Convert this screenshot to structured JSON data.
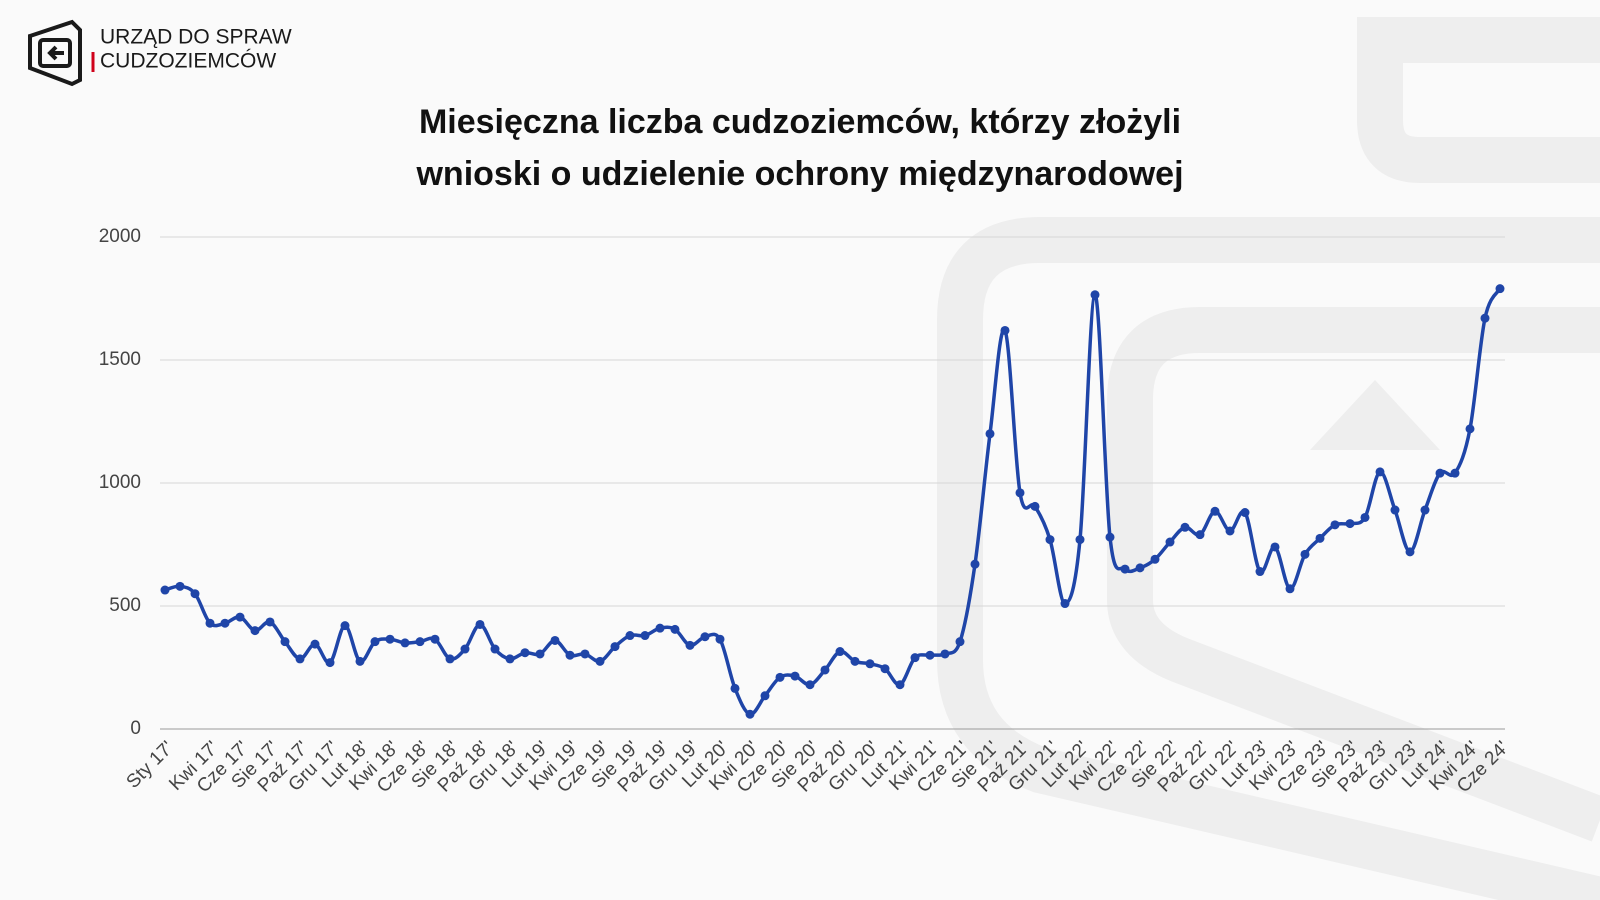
{
  "logo_text": [
    "URZĄD DO SPRAW",
    "CUDZOZIEMCÓW"
  ],
  "chart_data": {
    "type": "line",
    "title": "Miesięczna liczba cudzoziemców, którzy złożyli wnioski o udzielenie ochrony międzynarodowej",
    "categories": [
      "Sty 17'",
      null,
      null,
      "Kwi 17'",
      null,
      "Cze 17'",
      null,
      "Sie 17'",
      null,
      "Paź 17'",
      null,
      "Gru 17'",
      null,
      "Lut 18'",
      null,
      "Kwi 18'",
      null,
      "Cze 18'",
      null,
      "Sie 18'",
      null,
      "Paź 18'",
      null,
      "Gru 18'",
      null,
      "Lut 19'",
      null,
      "Kwi 19'",
      null,
      "Cze 19'",
      null,
      "Sie 19'",
      null,
      "Paź 19'",
      null,
      "Gru 19'",
      null,
      "Lut 20'",
      null,
      "Kwi 20'",
      null,
      "Cze 20'",
      null,
      "Sie 20'",
      null,
      "Paź 20'",
      null,
      "Gru 20'",
      null,
      "Lut 21'",
      null,
      "Kwi 21'",
      null,
      "Cze 21'",
      null,
      "Sie 21'",
      null,
      "Paź 21'",
      null,
      "Gru 21'",
      null,
      "Lut 22'",
      null,
      "Kwi 22'",
      null,
      "Cze 22'",
      null,
      "Sie 22'",
      null,
      "Paź 22'",
      null,
      "Gru 22'",
      null,
      "Lut 23'",
      null,
      "Kwi 23'",
      null,
      "Cze 23'",
      null,
      "Sie 23'",
      null,
      "Paź 23'",
      null,
      "Gru 23'",
      null,
      "Lut 24'",
      null,
      "Kwi 24'",
      null,
      "Cze 24'"
    ],
    "series": [
      {
        "color": "#1f45a8",
        "values": [
          565,
          580,
          550,
          430,
          430,
          455,
          400,
          435,
          355,
          285,
          345,
          270,
          420,
          275,
          355,
          365,
          350,
          355,
          365,
          285,
          325,
          425,
          325,
          285,
          310,
          305,
          360,
          300,
          305,
          275,
          335,
          380,
          380,
          410,
          405,
          340,
          375,
          365,
          165,
          60,
          135,
          210,
          215,
          180,
          240,
          315,
          275,
          265,
          245,
          180,
          290,
          300,
          305,
          355,
          670,
          1200,
          1620,
          960,
          905,
          770,
          510,
          770,
          1765,
          780,
          650,
          655,
          690,
          760,
          820,
          790,
          885,
          805,
          880,
          640,
          740,
          570,
          710,
          775,
          830,
          835,
          860,
          1045,
          890,
          720,
          890,
          1040,
          1040,
          1220,
          1670,
          1790
        ]
      }
    ],
    "ylim": [
      0,
      2000
    ],
    "yticks": [
      0,
      500,
      1000,
      1500,
      2000
    ],
    "grid": true
  }
}
